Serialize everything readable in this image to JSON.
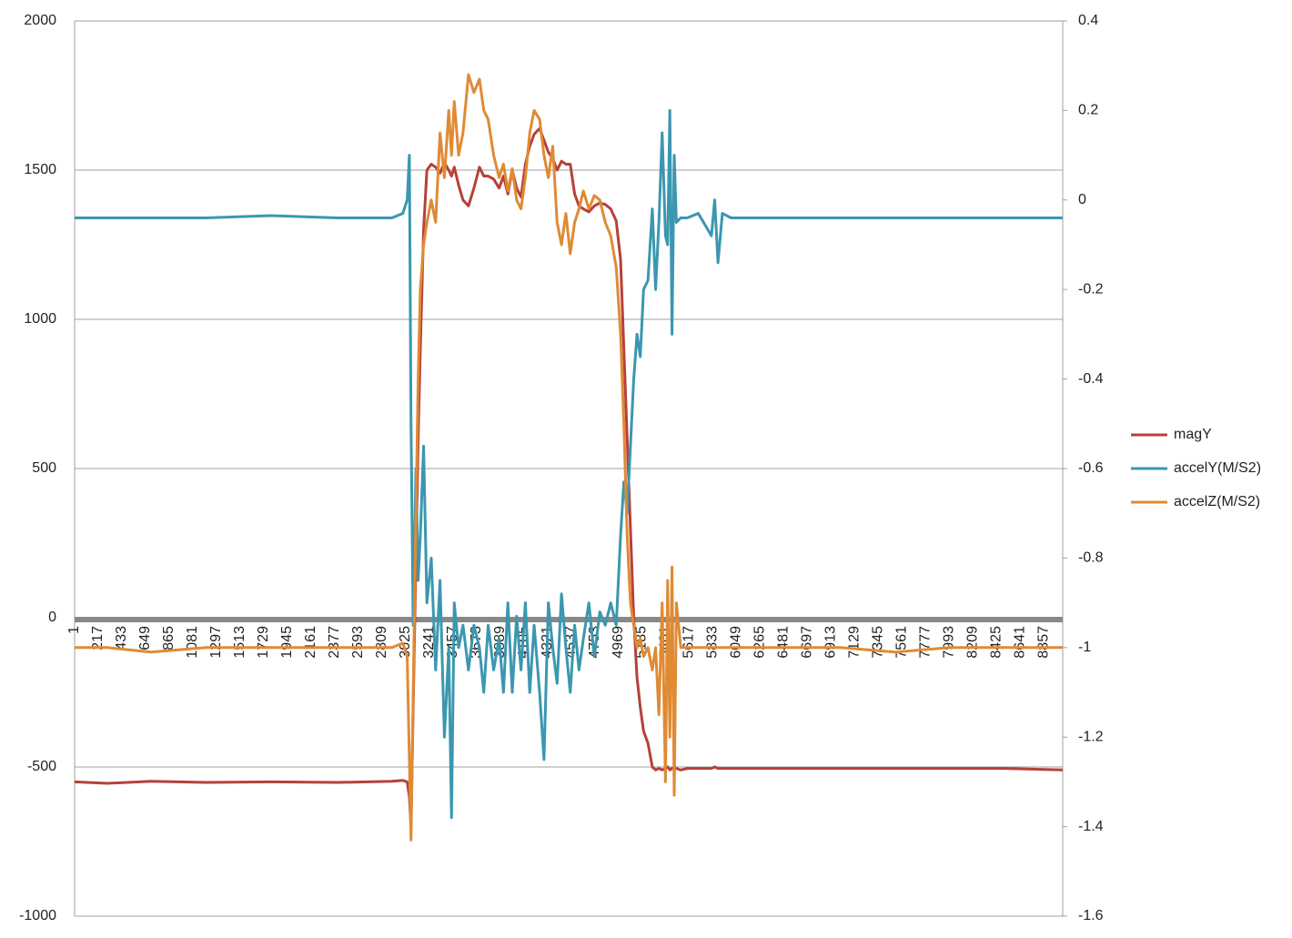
{
  "chart_data": {
    "type": "line",
    "xlim": [
      1,
      9030
    ],
    "xticks": [
      1,
      217,
      433,
      649,
      865,
      1081,
      1297,
      1513,
      1729,
      1945,
      2161,
      2377,
      2593,
      2809,
      3025,
      3241,
      3457,
      3673,
      3889,
      4105,
      4321,
      4537,
      4753,
      4969,
      5185,
      5401,
      5617,
      5833,
      6049,
      6265,
      6481,
      6697,
      6913,
      7129,
      7345,
      7561,
      7777,
      7993,
      8209,
      8425,
      8641,
      8857
    ],
    "ylim": [
      -1000,
      2000
    ],
    "yticks": [
      -1000,
      -500,
      0,
      500,
      1000,
      1500,
      2000
    ],
    "y2lim": [
      -1.6,
      0.4
    ],
    "y2ticks": [
      -1.6,
      -1.4,
      -1.2,
      -1,
      -0.8,
      -0.6,
      -0.4,
      -0.2,
      0,
      0.2,
      0.4
    ],
    "grid": true,
    "legend": "right",
    "x": [
      1,
      300,
      700,
      1200,
      1800,
      2400,
      2900,
      3000,
      3040,
      3060,
      3075,
      3095,
      3120,
      3140,
      3160,
      3190,
      3220,
      3260,
      3300,
      3340,
      3380,
      3420,
      3445,
      3470,
      3510,
      3550,
      3600,
      3650,
      3700,
      3740,
      3780,
      3830,
      3880,
      3920,
      3960,
      4000,
      4040,
      4080,
      4120,
      4160,
      4200,
      4250,
      4290,
      4330,
      4370,
      4410,
      4450,
      4490,
      4530,
      4570,
      4610,
      4650,
      4700,
      4750,
      4800,
      4850,
      4900,
      4950,
      4990,
      5020,
      5050,
      5080,
      5110,
      5140,
      5170,
      5200,
      5240,
      5280,
      5310,
      5340,
      5370,
      5400,
      5420,
      5440,
      5460,
      5480,
      5500,
      5540,
      5600,
      5700,
      5820,
      5850,
      5880,
      5920,
      6000,
      6500,
      7000,
      7500,
      8000,
      8500,
      9030
    ],
    "series": [
      {
        "name": "magY",
        "color": "#b5413a",
        "axis": "y",
        "values": [
          -550,
          -555,
          -548,
          -552,
          -550,
          -552,
          -548,
          -545,
          -550,
          -600,
          -700,
          -300,
          200,
          600,
          900,
          1300,
          1500,
          1520,
          1510,
          1490,
          1525,
          1500,
          1480,
          1510,
          1450,
          1400,
          1380,
          1440,
          1510,
          1480,
          1480,
          1470,
          1440,
          1480,
          1420,
          1500,
          1440,
          1410,
          1520,
          1580,
          1620,
          1640,
          1600,
          1560,
          1540,
          1500,
          1530,
          1520,
          1520,
          1420,
          1380,
          1370,
          1360,
          1380,
          1390,
          1385,
          1370,
          1330,
          1200,
          900,
          600,
          300,
          0,
          -200,
          -300,
          -380,
          -420,
          -500,
          -510,
          -505,
          -510,
          -505,
          -500,
          -510,
          -505,
          -500,
          -505,
          -510,
          -505,
          -505,
          -505,
          -500,
          -505,
          -505,
          -505,
          -505,
          -505,
          -505,
          -505,
          -505,
          -510
        ]
      },
      {
        "name": "accelY(M/S2)",
        "color": "#3b97b0",
        "axis": "y2",
        "values": [
          -0.04,
          -0.04,
          -0.04,
          -0.04,
          -0.035,
          -0.04,
          -0.04,
          -0.03,
          0,
          0.1,
          -0.5,
          -0.95,
          -0.6,
          -0.85,
          -0.75,
          -0.55,
          -0.9,
          -0.8,
          -1.05,
          -0.85,
          -1.2,
          -1,
          -1.38,
          -0.9,
          -1,
          -0.95,
          -1.05,
          -0.95,
          -1,
          -1.1,
          -0.95,
          -1.05,
          -0.98,
          -1.1,
          -0.9,
          -1.1,
          -0.93,
          -1.05,
          -0.9,
          -1.1,
          -0.95,
          -1.1,
          -1.25,
          -0.9,
          -1,
          -1.08,
          -0.88,
          -1,
          -1.1,
          -0.95,
          -1.05,
          -0.98,
          -0.9,
          -1.02,
          -0.92,
          -0.95,
          -0.9,
          -0.95,
          -0.75,
          -0.63,
          -0.7,
          -0.55,
          -0.4,
          -0.3,
          -0.35,
          -0.2,
          -0.18,
          -0.02,
          -0.2,
          -0.05,
          0.15,
          -0.08,
          -0.1,
          0.2,
          -0.3,
          0.1,
          -0.05,
          -0.04,
          -0.04,
          -0.03,
          -0.08,
          0,
          -0.14,
          -0.03,
          -0.04,
          -0.04,
          -0.04,
          -0.04,
          -0.04,
          -0.04,
          -0.04
        ]
      },
      {
        "name": "accelZ(M/S2)",
        "color": "#e08a34",
        "axis": "y2",
        "values": [
          -1,
          -1,
          -1.01,
          -1,
          -1,
          -1,
          -1,
          -0.99,
          -1.02,
          -1.25,
          -1.43,
          -1.1,
          -0.7,
          -0.4,
          -0.2,
          -0.1,
          -0.05,
          0,
          -0.05,
          0.15,
          0.05,
          0.2,
          0.1,
          0.22,
          0.1,
          0.15,
          0.28,
          0.24,
          0.27,
          0.2,
          0.18,
          0.1,
          0.05,
          0.08,
          0.02,
          0.07,
          0,
          -0.02,
          0.05,
          0.15,
          0.2,
          0.18,
          0.1,
          0.05,
          0.12,
          -0.05,
          -0.1,
          -0.03,
          -0.12,
          -0.05,
          -0.02,
          0.02,
          -0.02,
          0.01,
          0,
          -0.05,
          -0.08,
          -0.15,
          -0.3,
          -0.5,
          -0.75,
          -0.9,
          -0.95,
          -1,
          -0.98,
          -1.02,
          -1,
          -1.05,
          -1,
          -1.15,
          -0.9,
          -1.3,
          -0.85,
          -1.2,
          -0.82,
          -1.33,
          -0.9,
          -1,
          -1,
          -1,
          -1,
          -1,
          -1,
          -1,
          -1,
          -1,
          -1,
          -1.01,
          -1,
          -1,
          -1
        ]
      }
    ]
  }
}
